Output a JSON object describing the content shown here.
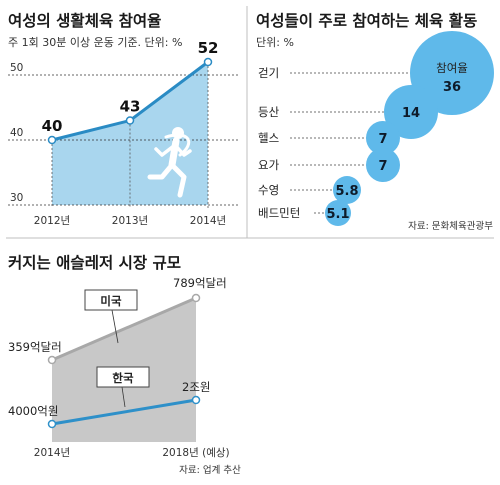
{
  "colors": {
    "line": "#2a8bc4",
    "fill": "#a9d6ee",
    "bubble": "#5fb9ea",
    "gray_area": "#c8c8c8",
    "gray_line": "#a8a8a8",
    "blue_line": "#2e90c9"
  },
  "chart_data": [
    {
      "type": "area",
      "title": "여성의 생활체육 참여율",
      "subtitle": "주 1회 30분 이상 운동 기준. 단위: %",
      "categories": [
        "2012년",
        "2013년",
        "2014년"
      ],
      "values": [
        40,
        43,
        52
      ],
      "y_ticks": [
        "50",
        "40",
        "30"
      ],
      "ylim": [
        30,
        53
      ],
      "grid": true,
      "icon": "runner-icon"
    },
    {
      "type": "scatter",
      "title": "여성들이 주로 참여하는 체육 활동",
      "subtitle": "단위: %",
      "header_label": "참여율",
      "categories": [
        "걷기",
        "등산",
        "헬스",
        "요가",
        "수영",
        "배드민턴"
      ],
      "values": [
        36,
        14,
        7,
        7,
        5.8,
        5.1
      ],
      "value_labels": [
        "36",
        "14",
        "7",
        "7",
        "5.8",
        "5.1"
      ],
      "source": "자료: 문화체육관광부"
    },
    {
      "type": "area",
      "title": "커지는 애슬레저 시장 규모",
      "categories": [
        "2014년",
        "2018년 (예상)"
      ],
      "series": [
        {
          "name": "미국",
          "values": [
            359,
            789
          ],
          "value_labels": [
            "359억달러",
            "789억달러"
          ]
        },
        {
          "name": "한국",
          "values": [
            4000,
            20000
          ],
          "value_labels": [
            "4000억원",
            "2조원"
          ]
        }
      ],
      "source": "자료: 업계 추산"
    }
  ]
}
